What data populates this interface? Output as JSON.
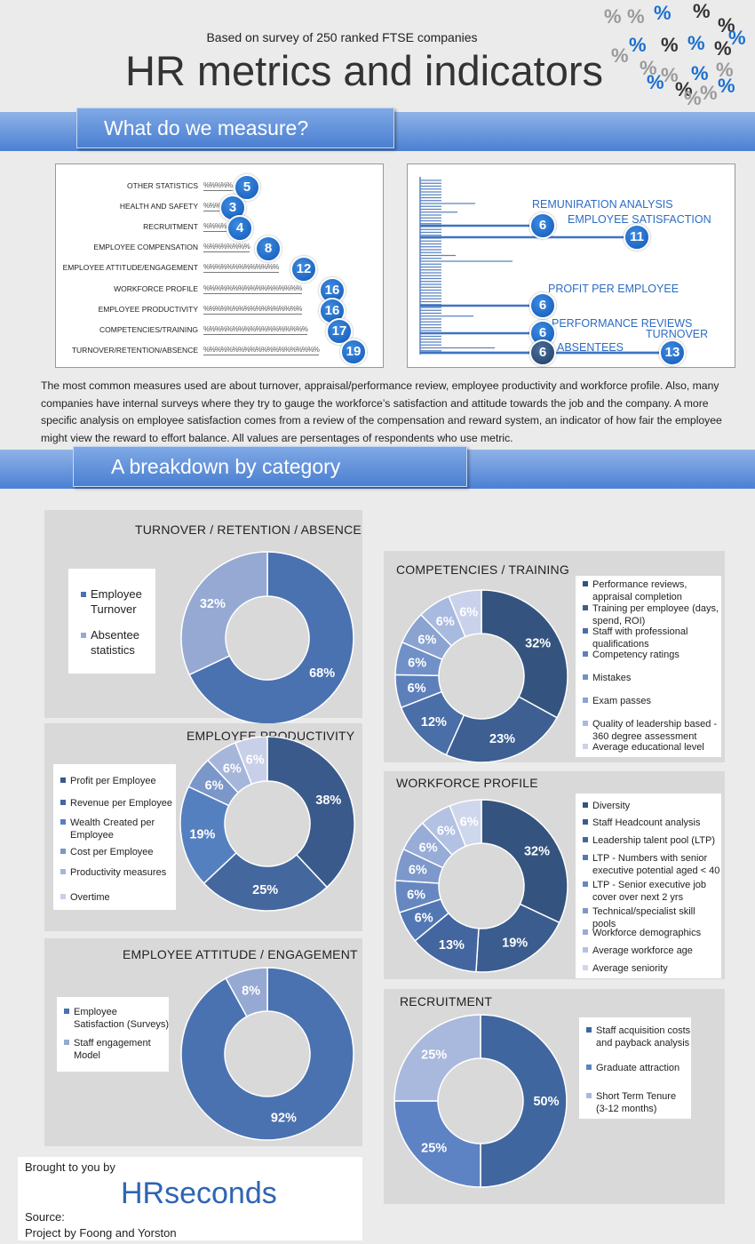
{
  "header": {
    "subtitle": "Based on survey of 250 ranked FTSE companies",
    "title": "HR metrics and indicators",
    "percent_symbol": "%",
    "percent_colors": [
      "#9a9a9a",
      "#1a6fcf",
      "#333333"
    ]
  },
  "sections": {
    "measure_title": "What do we measure?",
    "breakdown_title": "A breakdown by category"
  },
  "measures": {
    "categories": [
      "OTHER STATISTICS",
      "HEALTH AND SAFETY",
      "RECRUITMENT",
      "EMPLOYEE COMPENSATION",
      "EMPLOYEE ATTITUDE/ENGAGEMENT",
      "WORKFORCE PROFILE",
      "EMPLOYEE PRODUCTIVITY",
      "COMPETENCIES/TRAINING",
      "TURNOVER/RETENTION/ABSENCE"
    ],
    "values": [
      5,
      3,
      4,
      8,
      12,
      16,
      16,
      17,
      19
    ],
    "bar_fill": "%"
  },
  "specific_metrics": [
    {
      "label": "REMUNIRATION ANALYSIS",
      "value": 6
    },
    {
      "label": "EMPLOYEE SATISFACTION",
      "value": 11
    },
    {
      "label": "PROFIT PER EMPLOYEE",
      "value": 6
    },
    {
      "label": "PERFORMANCE REVIEWS",
      "value": 6
    },
    {
      "label": "ABSENTEES",
      "value": 6
    },
    {
      "label": "TURNOVER",
      "value": 13
    }
  ],
  "intro": {
    "lines": [
      "The most common measures used are about turnover, appraisal/performance review, employee productivity and workforce profile. Also, many",
      "companies have internal surveys where they try to gauge the workforce’s satisfaction and attitude towards the job and the company. A more",
      "specific analysis on employee satisfaction comes from a review of the compensation and reward system, an indicator of how fair the employee",
      " might view the reward to effort balance.  All values are persentages of respondents who use metric."
    ]
  },
  "chart_data": [
    {
      "type": "pie",
      "title": "TURNOVER / RETENTION / ABSENCE",
      "categories": [
        "Employee Turnover",
        "Absentee statistics"
      ],
      "values": [
        68,
        32
      ],
      "value_labels": [
        "68%",
        "32%"
      ],
      "colors": [
        "#4a72b0",
        "#95a9d2"
      ],
      "legend_lines": [
        [
          "Employee",
          "Turnover"
        ],
        [
          "Absentee",
          "statistics"
        ]
      ]
    },
    {
      "type": "pie",
      "title": "EMPLOYEE PRODUCTIVITY",
      "categories": [
        "Profit per Employee",
        "Revenue per Employee",
        "Wealth Created per Employee",
        "Cost per Employee",
        "Productivity measures",
        "Overtime"
      ],
      "values": [
        38,
        25,
        19,
        6,
        6,
        6
      ],
      "value_labels": [
        "38%",
        "25%",
        "19%",
        "6%",
        "6%",
        "6%"
      ],
      "colors": [
        "#395a8a",
        "#44679e",
        "#5580c0",
        "#7b96c8",
        "#a6b6db",
        "#c8d0e9"
      ],
      "legend_lines": [
        [
          "Profit per Employee"
        ],
        [
          "Revenue per Employee"
        ],
        [
          "Wealth Created per",
          "Employee"
        ],
        [
          "Cost per Employee"
        ],
        [
          "Productivity measures"
        ],
        [
          "Overtime"
        ]
      ]
    },
    {
      "type": "pie",
      "title": "EMPLOYEE ATTITUDE / ENGAGEMENT",
      "categories": [
        "Employee Satisfaction (Surveys)",
        "Staff engagement Model"
      ],
      "values": [
        92,
        8
      ],
      "value_labels": [
        "92%",
        "8%"
      ],
      "colors": [
        "#4a72b0",
        "#95a9d2"
      ],
      "legend_lines": [
        [
          "Employee",
          "Satisfaction (Surveys)"
        ],
        [
          "Staff engagement",
          "Model"
        ]
      ]
    },
    {
      "type": "pie",
      "title": "COMPETENCIES / TRAINING",
      "categories": [
        "Performance reviews, appraisal completion",
        "Training per employee (days, spend, ROI)",
        "Staff with professional qualifications",
        "Competency ratings",
        "Mistakes",
        "Exam passes",
        "Quality of leadership based - 360 degree assessment",
        "Average educational level"
      ],
      "values": [
        32,
        23,
        12,
        6,
        6,
        6,
        6,
        6
      ],
      "value_labels": [
        "32%",
        "23%",
        "12%",
        "6%",
        "6%",
        "6%",
        "6%",
        "6%"
      ],
      "colors": [
        "#34547f",
        "#3d5f92",
        "#4a6ea7",
        "#5d80bb",
        "#7090c8",
        "#8aa3d1",
        "#a8badf",
        "#c9d2ea"
      ],
      "legend_lines": [
        [
          "Performance reviews,",
          "appraisal completion"
        ],
        [
          "Training per employee (days,",
          "spend, ROI)"
        ],
        [
          "Staff with professional",
          "qualifications"
        ],
        [
          "Competency ratings"
        ],
        [
          "Mistakes"
        ],
        [
          "Exam passes"
        ],
        [
          "Quality of leadership based -",
          "360 degree assessment"
        ],
        [
          "Average educational level"
        ]
      ]
    },
    {
      "type": "pie",
      "title": "WORKFORCE PROFILE",
      "categories": [
        "Diversity",
        "Staff Headcount analysis",
        "Leadership talent pool (LTP)",
        "LTP - Numbers with senior executive potential aged < 40",
        "LTP - Senior executive job cover over next 2 yrs",
        "Technical/specialist skill pools",
        "Workforce demographics",
        "Average workforce age",
        "Average seniority"
      ],
      "values": [
        32,
        19,
        13,
        6,
        6,
        6,
        6,
        6,
        6
      ],
      "value_labels": [
        "32%",
        "19%",
        "13%",
        "6%",
        "6%",
        "6%",
        "6%",
        "6%",
        "6%"
      ],
      "colors": [
        "#34547f",
        "#3b5c8e",
        "#4466a0",
        "#5377b4",
        "#6787c1",
        "#7d98ca",
        "#97acd6",
        "#b3c2e2",
        "#cfd7ec"
      ],
      "legend_lines": [
        [
          "Diversity"
        ],
        [
          "Staff Headcount analysis"
        ],
        [
          "Leadership talent pool (LTP)"
        ],
        [
          "LTP - Numbers with senior",
          "executive potential aged < 40"
        ],
        [
          "LTP - Senior executive job",
          "cover over next 2 yrs"
        ],
        [
          "Technical/specialist skill",
          "pools"
        ],
        [
          "Workforce demographics"
        ],
        [
          "Average workforce age"
        ],
        [
          "Average seniority"
        ]
      ]
    },
    {
      "type": "pie",
      "title": "RECRUITMENT",
      "categories": [
        "Staff acquisition costs and payback analysis",
        "Graduate attraction",
        "Short Term Tenure (3-12 months)"
      ],
      "values": [
        50,
        25,
        25
      ],
      "value_labels": [
        "50%",
        "25%",
        "25%"
      ],
      "colors": [
        "#40669f",
        "#5e83c4",
        "#a9b9dd"
      ],
      "legend_lines": [
        [
          "Staff acquisition costs",
          "and payback analysis"
        ],
        [
          "Graduate attraction"
        ],
        [
          "Short Term Tenure",
          "(3-12 months)"
        ]
      ]
    }
  ],
  "footer": {
    "brought_by": "Brought to you by",
    "brand": "HRseconds",
    "source_label": "Source:",
    "source_text": "Project by Foong and Yorston"
  }
}
